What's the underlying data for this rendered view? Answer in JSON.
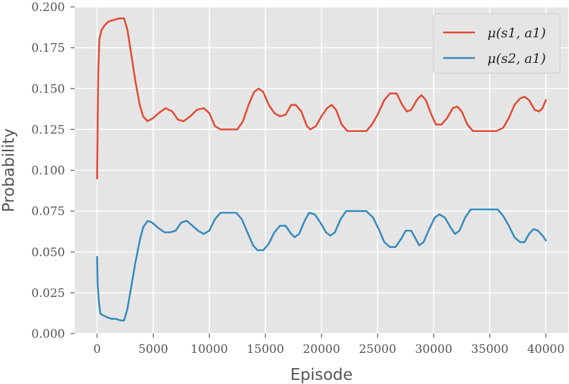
{
  "chart_data": {
    "type": "line",
    "title": "",
    "xlabel": "Episode",
    "ylabel": "Probability",
    "xlim": [
      -2000,
      42000
    ],
    "ylim": [
      0.0,
      0.2
    ],
    "xticks": [
      0,
      5000,
      10000,
      15000,
      20000,
      25000,
      30000,
      35000,
      40000
    ],
    "xtick_labels": [
      "0",
      "5000",
      "10000",
      "15000",
      "20000",
      "25000",
      "30000",
      "35000",
      "40000"
    ],
    "yticks": [
      0.0,
      0.025,
      0.05,
      0.075,
      0.1,
      0.125,
      0.15,
      0.175,
      0.2
    ],
    "ytick_labels": [
      "0.000",
      "0.025",
      "0.050",
      "0.075",
      "0.100",
      "0.125",
      "0.150",
      "0.175",
      "0.200"
    ],
    "grid": true,
    "legend_position": "top-right",
    "background": "#e5e5e5",
    "grid_color": "#ffffff",
    "series": [
      {
        "name": "μ(s1, a1)",
        "color": "#e24a33",
        "points": [
          [
            0,
            0.095
          ],
          [
            100,
            0.16
          ],
          [
            200,
            0.18
          ],
          [
            400,
            0.186
          ],
          [
            700,
            0.189
          ],
          [
            1000,
            0.191
          ],
          [
            1500,
            0.192
          ],
          [
            2000,
            0.193
          ],
          [
            2400,
            0.193
          ],
          [
            2700,
            0.186
          ],
          [
            3000,
            0.173
          ],
          [
            3400,
            0.155
          ],
          [
            3800,
            0.14
          ],
          [
            4100,
            0.133
          ],
          [
            4500,
            0.13
          ],
          [
            5000,
            0.132
          ],
          [
            5500,
            0.135
          ],
          [
            6100,
            0.138
          ],
          [
            6700,
            0.136
          ],
          [
            7200,
            0.131
          ],
          [
            7700,
            0.13
          ],
          [
            8300,
            0.133
          ],
          [
            8900,
            0.137
          ],
          [
            9500,
            0.138
          ],
          [
            10000,
            0.135
          ],
          [
            10500,
            0.127
          ],
          [
            11000,
            0.125
          ],
          [
            11500,
            0.125
          ],
          [
            12500,
            0.125
          ],
          [
            13000,
            0.13
          ],
          [
            13500,
            0.14
          ],
          [
            14000,
            0.148
          ],
          [
            14400,
            0.15
          ],
          [
            14800,
            0.148
          ],
          [
            15300,
            0.14
          ],
          [
            15800,
            0.135
          ],
          [
            16300,
            0.133
          ],
          [
            16800,
            0.134
          ],
          [
            17300,
            0.14
          ],
          [
            17700,
            0.14
          ],
          [
            18200,
            0.136
          ],
          [
            18700,
            0.127
          ],
          [
            19000,
            0.125
          ],
          [
            19500,
            0.127
          ],
          [
            20000,
            0.133
          ],
          [
            20500,
            0.138
          ],
          [
            20900,
            0.14
          ],
          [
            21300,
            0.137
          ],
          [
            21800,
            0.128
          ],
          [
            22300,
            0.124
          ],
          [
            22800,
            0.124
          ],
          [
            23500,
            0.124
          ],
          [
            24000,
            0.124
          ],
          [
            24500,
            0.128
          ],
          [
            25000,
            0.134
          ],
          [
            25600,
            0.143
          ],
          [
            26100,
            0.147
          ],
          [
            26700,
            0.147
          ],
          [
            27200,
            0.14
          ],
          [
            27600,
            0.136
          ],
          [
            28000,
            0.137
          ],
          [
            28500,
            0.143
          ],
          [
            28900,
            0.146
          ],
          [
            29300,
            0.143
          ],
          [
            29800,
            0.134
          ],
          [
            30200,
            0.128
          ],
          [
            30700,
            0.128
          ],
          [
            31200,
            0.132
          ],
          [
            31700,
            0.138
          ],
          [
            32100,
            0.139
          ],
          [
            32500,
            0.136
          ],
          [
            33000,
            0.128
          ],
          [
            33500,
            0.124
          ],
          [
            34000,
            0.124
          ],
          [
            35000,
            0.124
          ],
          [
            35600,
            0.124
          ],
          [
            36200,
            0.126
          ],
          [
            36700,
            0.132
          ],
          [
            37200,
            0.14
          ],
          [
            37700,
            0.144
          ],
          [
            38100,
            0.145
          ],
          [
            38500,
            0.143
          ],
          [
            39000,
            0.137
          ],
          [
            39400,
            0.136
          ],
          [
            39700,
            0.138
          ],
          [
            40000,
            0.143
          ]
        ]
      },
      {
        "name": "μ(s2, a1)",
        "color": "#348abd",
        "points": [
          [
            0,
            0.047
          ],
          [
            50,
            0.03
          ],
          [
            150,
            0.02
          ],
          [
            300,
            0.012
          ],
          [
            600,
            0.011
          ],
          [
            900,
            0.01
          ],
          [
            1300,
            0.009
          ],
          [
            1700,
            0.009
          ],
          [
            2100,
            0.008
          ],
          [
            2400,
            0.008
          ],
          [
            2700,
            0.015
          ],
          [
            3000,
            0.027
          ],
          [
            3400,
            0.043
          ],
          [
            3800,
            0.057
          ],
          [
            4100,
            0.065
          ],
          [
            4500,
            0.069
          ],
          [
            4900,
            0.068
          ],
          [
            5400,
            0.065
          ],
          [
            6000,
            0.062
          ],
          [
            6500,
            0.062
          ],
          [
            7000,
            0.063
          ],
          [
            7500,
            0.068
          ],
          [
            8000,
            0.069
          ],
          [
            8500,
            0.066
          ],
          [
            9000,
            0.063
          ],
          [
            9500,
            0.061
          ],
          [
            10000,
            0.063
          ],
          [
            10500,
            0.07
          ],
          [
            11000,
            0.074
          ],
          [
            11500,
            0.074
          ],
          [
            12400,
            0.074
          ],
          [
            12900,
            0.07
          ],
          [
            13400,
            0.062
          ],
          [
            13900,
            0.054
          ],
          [
            14300,
            0.051
          ],
          [
            14800,
            0.051
          ],
          [
            15300,
            0.055
          ],
          [
            15800,
            0.062
          ],
          [
            16300,
            0.066
          ],
          [
            16800,
            0.066
          ],
          [
            17300,
            0.061
          ],
          [
            17600,
            0.059
          ],
          [
            18000,
            0.061
          ],
          [
            18500,
            0.069
          ],
          [
            18900,
            0.074
          ],
          [
            19400,
            0.073
          ],
          [
            19900,
            0.068
          ],
          [
            20400,
            0.062
          ],
          [
            20800,
            0.06
          ],
          [
            21200,
            0.062
          ],
          [
            21700,
            0.07
          ],
          [
            22200,
            0.075
          ],
          [
            22800,
            0.075
          ],
          [
            23500,
            0.075
          ],
          [
            24000,
            0.075
          ],
          [
            24600,
            0.071
          ],
          [
            25100,
            0.064
          ],
          [
            25600,
            0.056
          ],
          [
            26100,
            0.053
          ],
          [
            26600,
            0.053
          ],
          [
            27100,
            0.058
          ],
          [
            27500,
            0.063
          ],
          [
            28000,
            0.063
          ],
          [
            28400,
            0.058
          ],
          [
            28700,
            0.054
          ],
          [
            29100,
            0.056
          ],
          [
            29600,
            0.064
          ],
          [
            30100,
            0.071
          ],
          [
            30500,
            0.073
          ],
          [
            31000,
            0.071
          ],
          [
            31500,
            0.065
          ],
          [
            31900,
            0.061
          ],
          [
            32300,
            0.063
          ],
          [
            32800,
            0.071
          ],
          [
            33300,
            0.076
          ],
          [
            34000,
            0.076
          ],
          [
            35000,
            0.076
          ],
          [
            35700,
            0.076
          ],
          [
            36200,
            0.072
          ],
          [
            36700,
            0.066
          ],
          [
            37200,
            0.059
          ],
          [
            37700,
            0.056
          ],
          [
            38100,
            0.056
          ],
          [
            38500,
            0.061
          ],
          [
            38900,
            0.064
          ],
          [
            39300,
            0.063
          ],
          [
            39700,
            0.06
          ],
          [
            40000,
            0.057
          ]
        ]
      }
    ]
  }
}
